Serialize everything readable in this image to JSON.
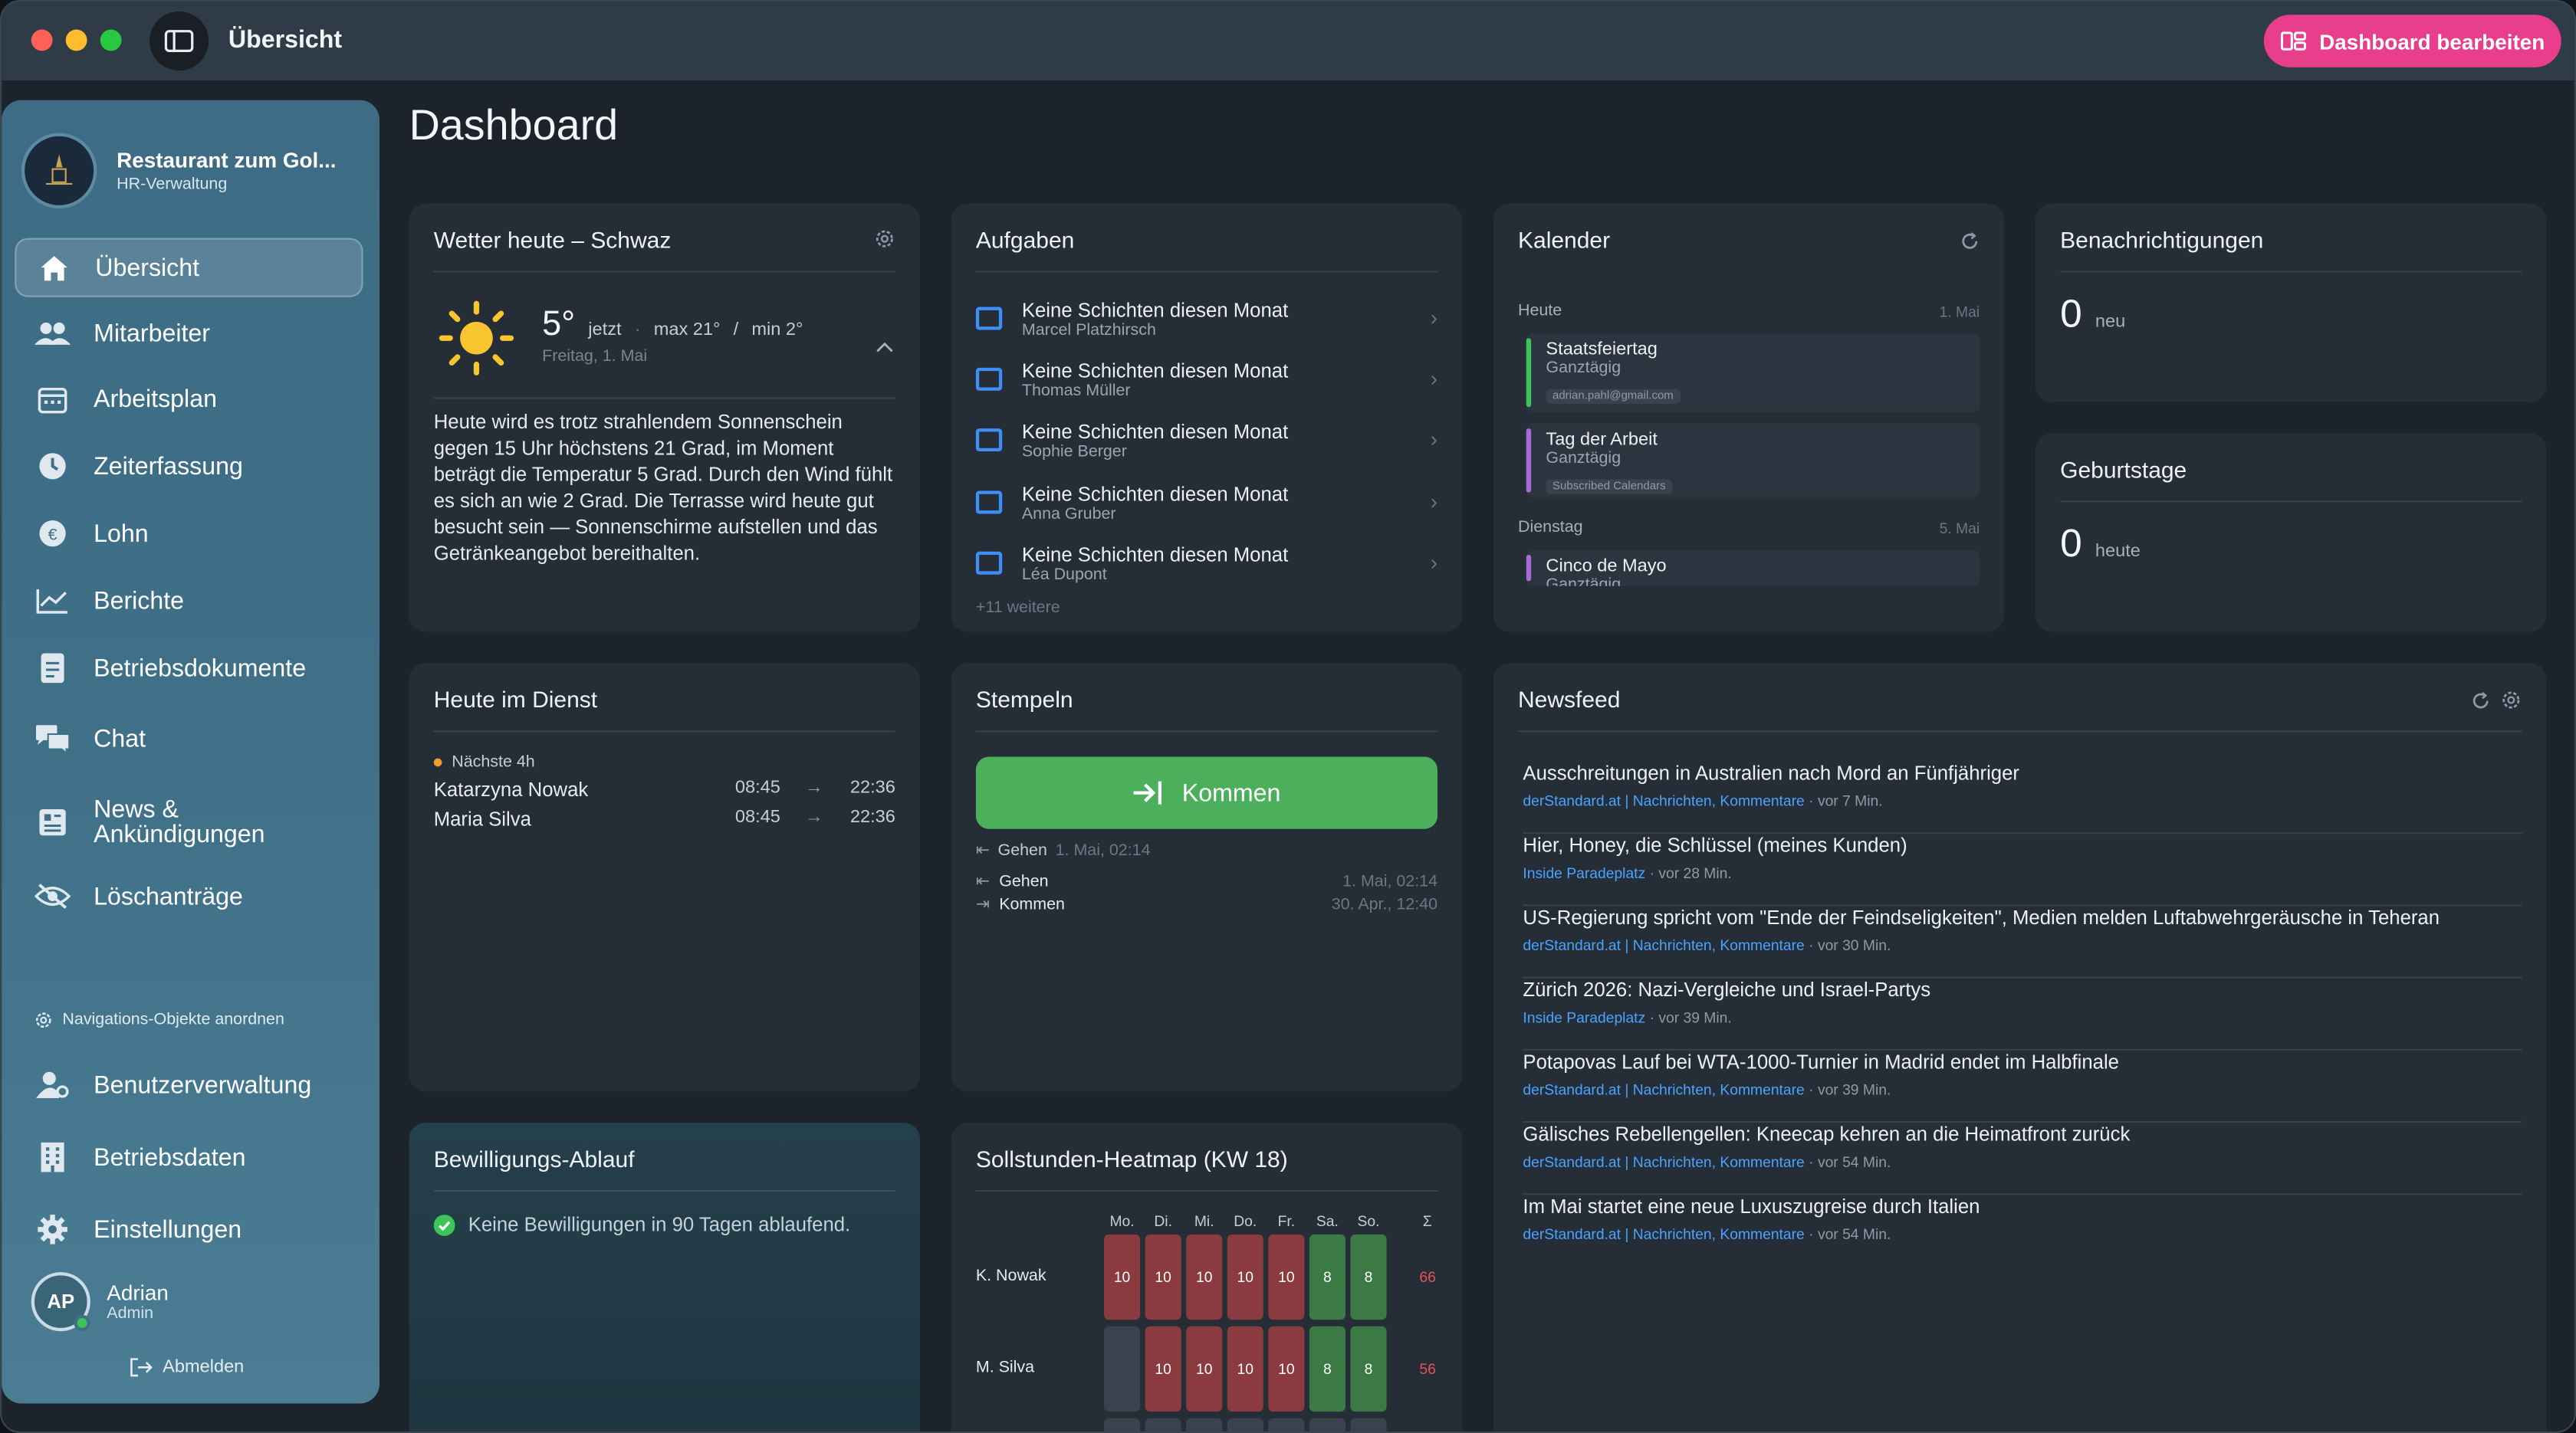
{
  "titlebar": {
    "title": "Übersicht",
    "edit_label": "Dashboard bearbeiten"
  },
  "sidebar": {
    "org_name": "Restaurant zum Gol...",
    "org_sub": "HR-Verwaltung",
    "items": [
      {
        "label": "Übersicht",
        "icon": "home-icon"
      },
      {
        "label": "Mitarbeiter",
        "icon": "users-icon"
      },
      {
        "label": "Arbeitsplan",
        "icon": "calendar-icon"
      },
      {
        "label": "Zeiterfassung",
        "icon": "clock-icon"
      },
      {
        "label": "Lohn",
        "icon": "euro-icon"
      },
      {
        "label": "Berichte",
        "icon": "chart-icon"
      },
      {
        "label": "Betriebsdokumente",
        "icon": "document-icon"
      },
      {
        "label": "Chat",
        "icon": "chat-icon"
      },
      {
        "label": "News & Ankündigungen",
        "icon": "news-icon"
      },
      {
        "label": "Löschanträge",
        "icon": "eye-slash-icon"
      }
    ],
    "arrange_label": "Navigations-Objekte anordnen",
    "bottom_items": [
      {
        "label": "Benutzerverwaltung",
        "icon": "user-gear-icon"
      },
      {
        "label": "Betriebsdaten",
        "icon": "building-icon"
      },
      {
        "label": "Einstellungen",
        "icon": "gear-icon"
      }
    ],
    "user": {
      "initials": "AP",
      "name": "Adrian",
      "role": "Admin"
    },
    "logout_label": "Abmelden"
  },
  "page_title": "Dashboard",
  "weather": {
    "title": "Wetter heute – Schwaz",
    "temp": "5°",
    "now": "jetzt",
    "max": "max 21°",
    "min": "min 2°",
    "date": "Freitag, 1. Mai",
    "text": "Heute wird es trotz strahlendem Sonnenschein gegen 15 Uhr höchstens 21 Grad, im Moment beträgt die Temperatur 5 Grad. Durch den Wind fühlt es sich an wie 2 Grad. Die Terrasse wird heute gut besucht sein — Sonnenschirme aufstellen und das Getränkeangebot bereithalten."
  },
  "tasks": {
    "title": "Aufgaben",
    "items": [
      {
        "title": "Keine Schichten diesen Monat",
        "person": "Marcel Platzhirsch"
      },
      {
        "title": "Keine Schichten diesen Monat",
        "person": "Thomas Müller"
      },
      {
        "title": "Keine Schichten diesen Monat",
        "person": "Sophie Berger"
      },
      {
        "title": "Keine Schichten diesen Monat",
        "person": "Anna Gruber"
      },
      {
        "title": "Keine Schichten diesen Monat",
        "person": "Léa Dupont"
      }
    ],
    "more": "+11 weitere"
  },
  "calendar": {
    "title": "Kalender",
    "day1": "Heute",
    "day1_date": "1. Mai",
    "day2": "Dienstag",
    "day2_date": "5. Mai",
    "events": [
      {
        "title": "Staatsfeiertag",
        "sub": "Ganztägig",
        "tag": "adrian.pahl@gmail.com",
        "color": "#3cc45a"
      },
      {
        "title": "Tag der Arbeit",
        "sub": "Ganztägig",
        "tag": "Subscribed Calendars",
        "color": "#a66bd6"
      },
      {
        "title": "Cinco de Mayo",
        "sub": "Ganztägig",
        "color": "#a66bd6"
      }
    ]
  },
  "notifications": {
    "title": "Benachrichtigungen",
    "count": "0",
    "label": "neu"
  },
  "birthdays": {
    "title": "Geburtstage",
    "count": "0",
    "label": "heute"
  },
  "duty": {
    "title": "Heute im Dienst",
    "next": "Nächste 4h",
    "rows": [
      {
        "name": "Katarzyna Nowak",
        "from": "08:45",
        "to": "22:36"
      },
      {
        "name": "Maria Silva",
        "from": "08:45",
        "to": "22:36"
      }
    ]
  },
  "stamp": {
    "title": "Stempeln",
    "button": "Kommen",
    "last": "Gehen",
    "last_time": "1. Mai, 02:14",
    "history": [
      {
        "label": "Gehen",
        "time": "1. Mai, 02:14"
      },
      {
        "label": "Kommen",
        "time": "30. Apr., 12:40"
      }
    ]
  },
  "news": {
    "title": "Newsfeed",
    "items": [
      {
        "title": "Ausschreitungen in Australien nach Mord an Fünfjähriger",
        "source": "derStandard.at | Nachrichten, Kommentare",
        "time": "vor 7 Min."
      },
      {
        "title": "Hier, Honey, die Schlüssel (meines Kunden)",
        "source": "Inside Paradeplatz",
        "time": "vor 28 Min."
      },
      {
        "title": "US-Regierung spricht vom \"Ende der Feindseligkeiten\", Medien melden Luftabwehrgeräusche in Teheran",
        "source": "derStandard.at | Nachrichten, Kommentare",
        "time": "vor 30 Min."
      },
      {
        "title": "Zürich 2026: Nazi-Vergleiche und Israel-Partys",
        "source": "Inside Paradeplatz",
        "time": "vor 39 Min."
      },
      {
        "title": "Potapovas Lauf bei WTA-1000-Turnier in Madrid endet im Halbfinale",
        "source": "derStandard.at | Nachrichten, Kommentare",
        "time": "vor 39 Min."
      },
      {
        "title": "Gälisches Rebellengellen: Kneecap kehren an die Heimatfront zurück",
        "source": "derStandard.at | Nachrichten, Kommentare",
        "time": "vor 54 Min."
      },
      {
        "title": "Im Mai startet eine neue Luxuszugreise durch Italien",
        "source": "derStandard.at | Nachrichten, Kommentare",
        "time": "vor 54 Min."
      }
    ]
  },
  "permits": {
    "title": "Bewilligungs-Ablauf",
    "text": "Keine Bewilligungen in 90 Tagen ablaufend."
  },
  "heatmap": {
    "title": "Sollstunden-Heatmap (KW 18)",
    "days": [
      "Mo.",
      "Di.",
      "Mi.",
      "Do.",
      "Fr.",
      "Sa.",
      "So."
    ],
    "sum_label": "Σ",
    "rows": [
      {
        "name": "K. Nowak",
        "values": [
          "10",
          "10",
          "10",
          "10",
          "10",
          "8",
          "8"
        ],
        "sum": "66"
      },
      {
        "name": "M. Silva",
        "values": [
          "",
          "10",
          "10",
          "10",
          "10",
          "8",
          "8"
        ],
        "sum": "56"
      }
    ]
  }
}
